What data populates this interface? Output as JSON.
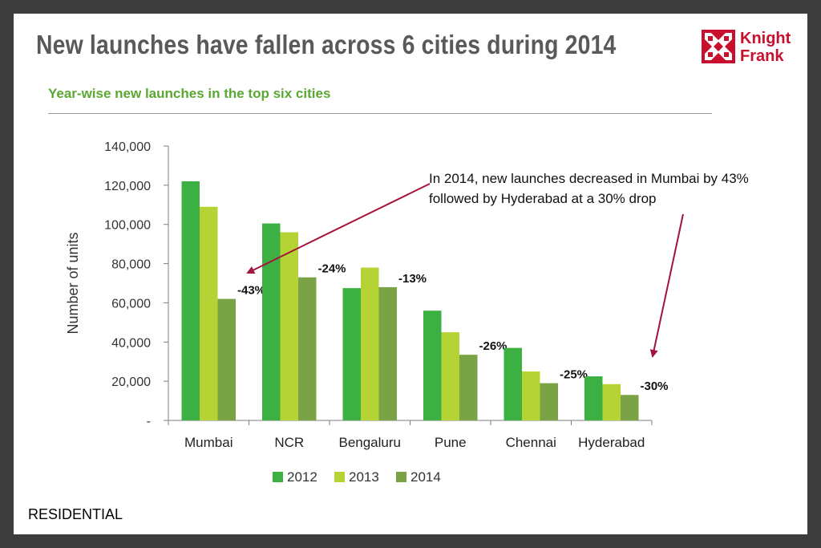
{
  "slide": {
    "title": "New launches have fallen across 6 cities during 2014",
    "chart_heading": "Year-wise new launches in the top six cities",
    "callout": "In 2014, new launches decreased in Mumbai by 43% followed by Hyderabad at a 30% drop",
    "footer": "RESIDENTIAL"
  },
  "logo": {
    "line1": "Knight",
    "line2": "Frank",
    "color": "#c8102e"
  },
  "chart_data": {
    "type": "bar",
    "title": "Year-wise new launches in the top six cities",
    "xlabel": "",
    "ylabel": "Number of units",
    "ylim": [
      0,
      140000
    ],
    "yticks": [
      0,
      20000,
      40000,
      60000,
      80000,
      100000,
      120000,
      140000
    ],
    "ytick_labels": [
      "-",
      "20,000",
      "40,000",
      "60,000",
      "80,000",
      "100,000",
      "120,000",
      "140,000"
    ],
    "categories": [
      "Mumbai",
      "NCR",
      "Bengaluru",
      "Pune",
      "Chennai",
      "Hyderabad"
    ],
    "series": [
      {
        "name": "2012",
        "color": "#3cb043",
        "values": [
          122000,
          100500,
          67500,
          56000,
          37000,
          22500
        ]
      },
      {
        "name": "2013",
        "color": "#b5d334",
        "values": [
          109000,
          96000,
          78000,
          45000,
          25000,
          18500
        ]
      },
      {
        "name": "2014",
        "color": "#7aa345",
        "values": [
          62000,
          73000,
          68000,
          33500,
          19000,
          13000
        ]
      }
    ],
    "annotations": [
      "-43%",
      "-24%",
      "-13%",
      "-26%",
      "-25%",
      "-30%"
    ],
    "grid": false,
    "legend_position": "bottom"
  }
}
